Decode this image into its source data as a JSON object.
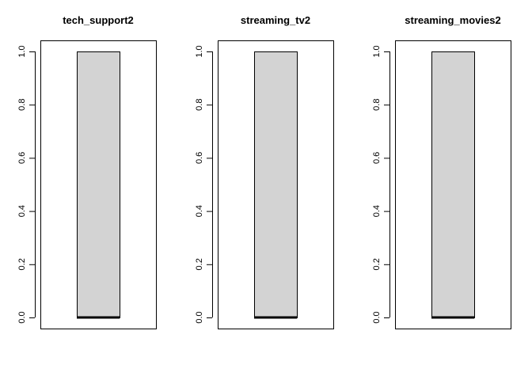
{
  "chart_data": [
    {
      "type": "boxplot",
      "title": "tech_support2",
      "xlabel": "",
      "ylabel": "",
      "ylim": [
        0,
        1
      ],
      "yticks": [
        "0.0",
        "0.2",
        "0.4",
        "0.6",
        "0.8",
        "1.0"
      ],
      "ytick_values": [
        0,
        0.2,
        0.4,
        0.6,
        0.8,
        1.0
      ],
      "box": {
        "min": 0,
        "q1": 0,
        "median": 0,
        "q3": 1,
        "max": 1
      },
      "fill_color": "#d3d3d3",
      "grid": false
    },
    {
      "type": "boxplot",
      "title": "streaming_tv2",
      "xlabel": "",
      "ylabel": "",
      "ylim": [
        0,
        1
      ],
      "yticks": [
        "0.0",
        "0.2",
        "0.4",
        "0.6",
        "0.8",
        "1.0"
      ],
      "ytick_values": [
        0,
        0.2,
        0.4,
        0.6,
        0.8,
        1.0
      ],
      "box": {
        "min": 0,
        "q1": 0,
        "median": 0,
        "q3": 1,
        "max": 1
      },
      "fill_color": "#d3d3d3",
      "grid": false
    },
    {
      "type": "boxplot",
      "title": "streaming_movies2",
      "xlabel": "",
      "ylabel": "",
      "ylim": [
        0,
        1
      ],
      "yticks": [
        "0.0",
        "0.2",
        "0.4",
        "0.6",
        "0.8",
        "1.0"
      ],
      "ytick_values": [
        0,
        0.2,
        0.4,
        0.6,
        0.8,
        1.0
      ],
      "box": {
        "min": 0,
        "q1": 0,
        "median": 0,
        "q3": 1,
        "max": 1
      },
      "fill_color": "#d3d3d3",
      "grid": false
    }
  ]
}
